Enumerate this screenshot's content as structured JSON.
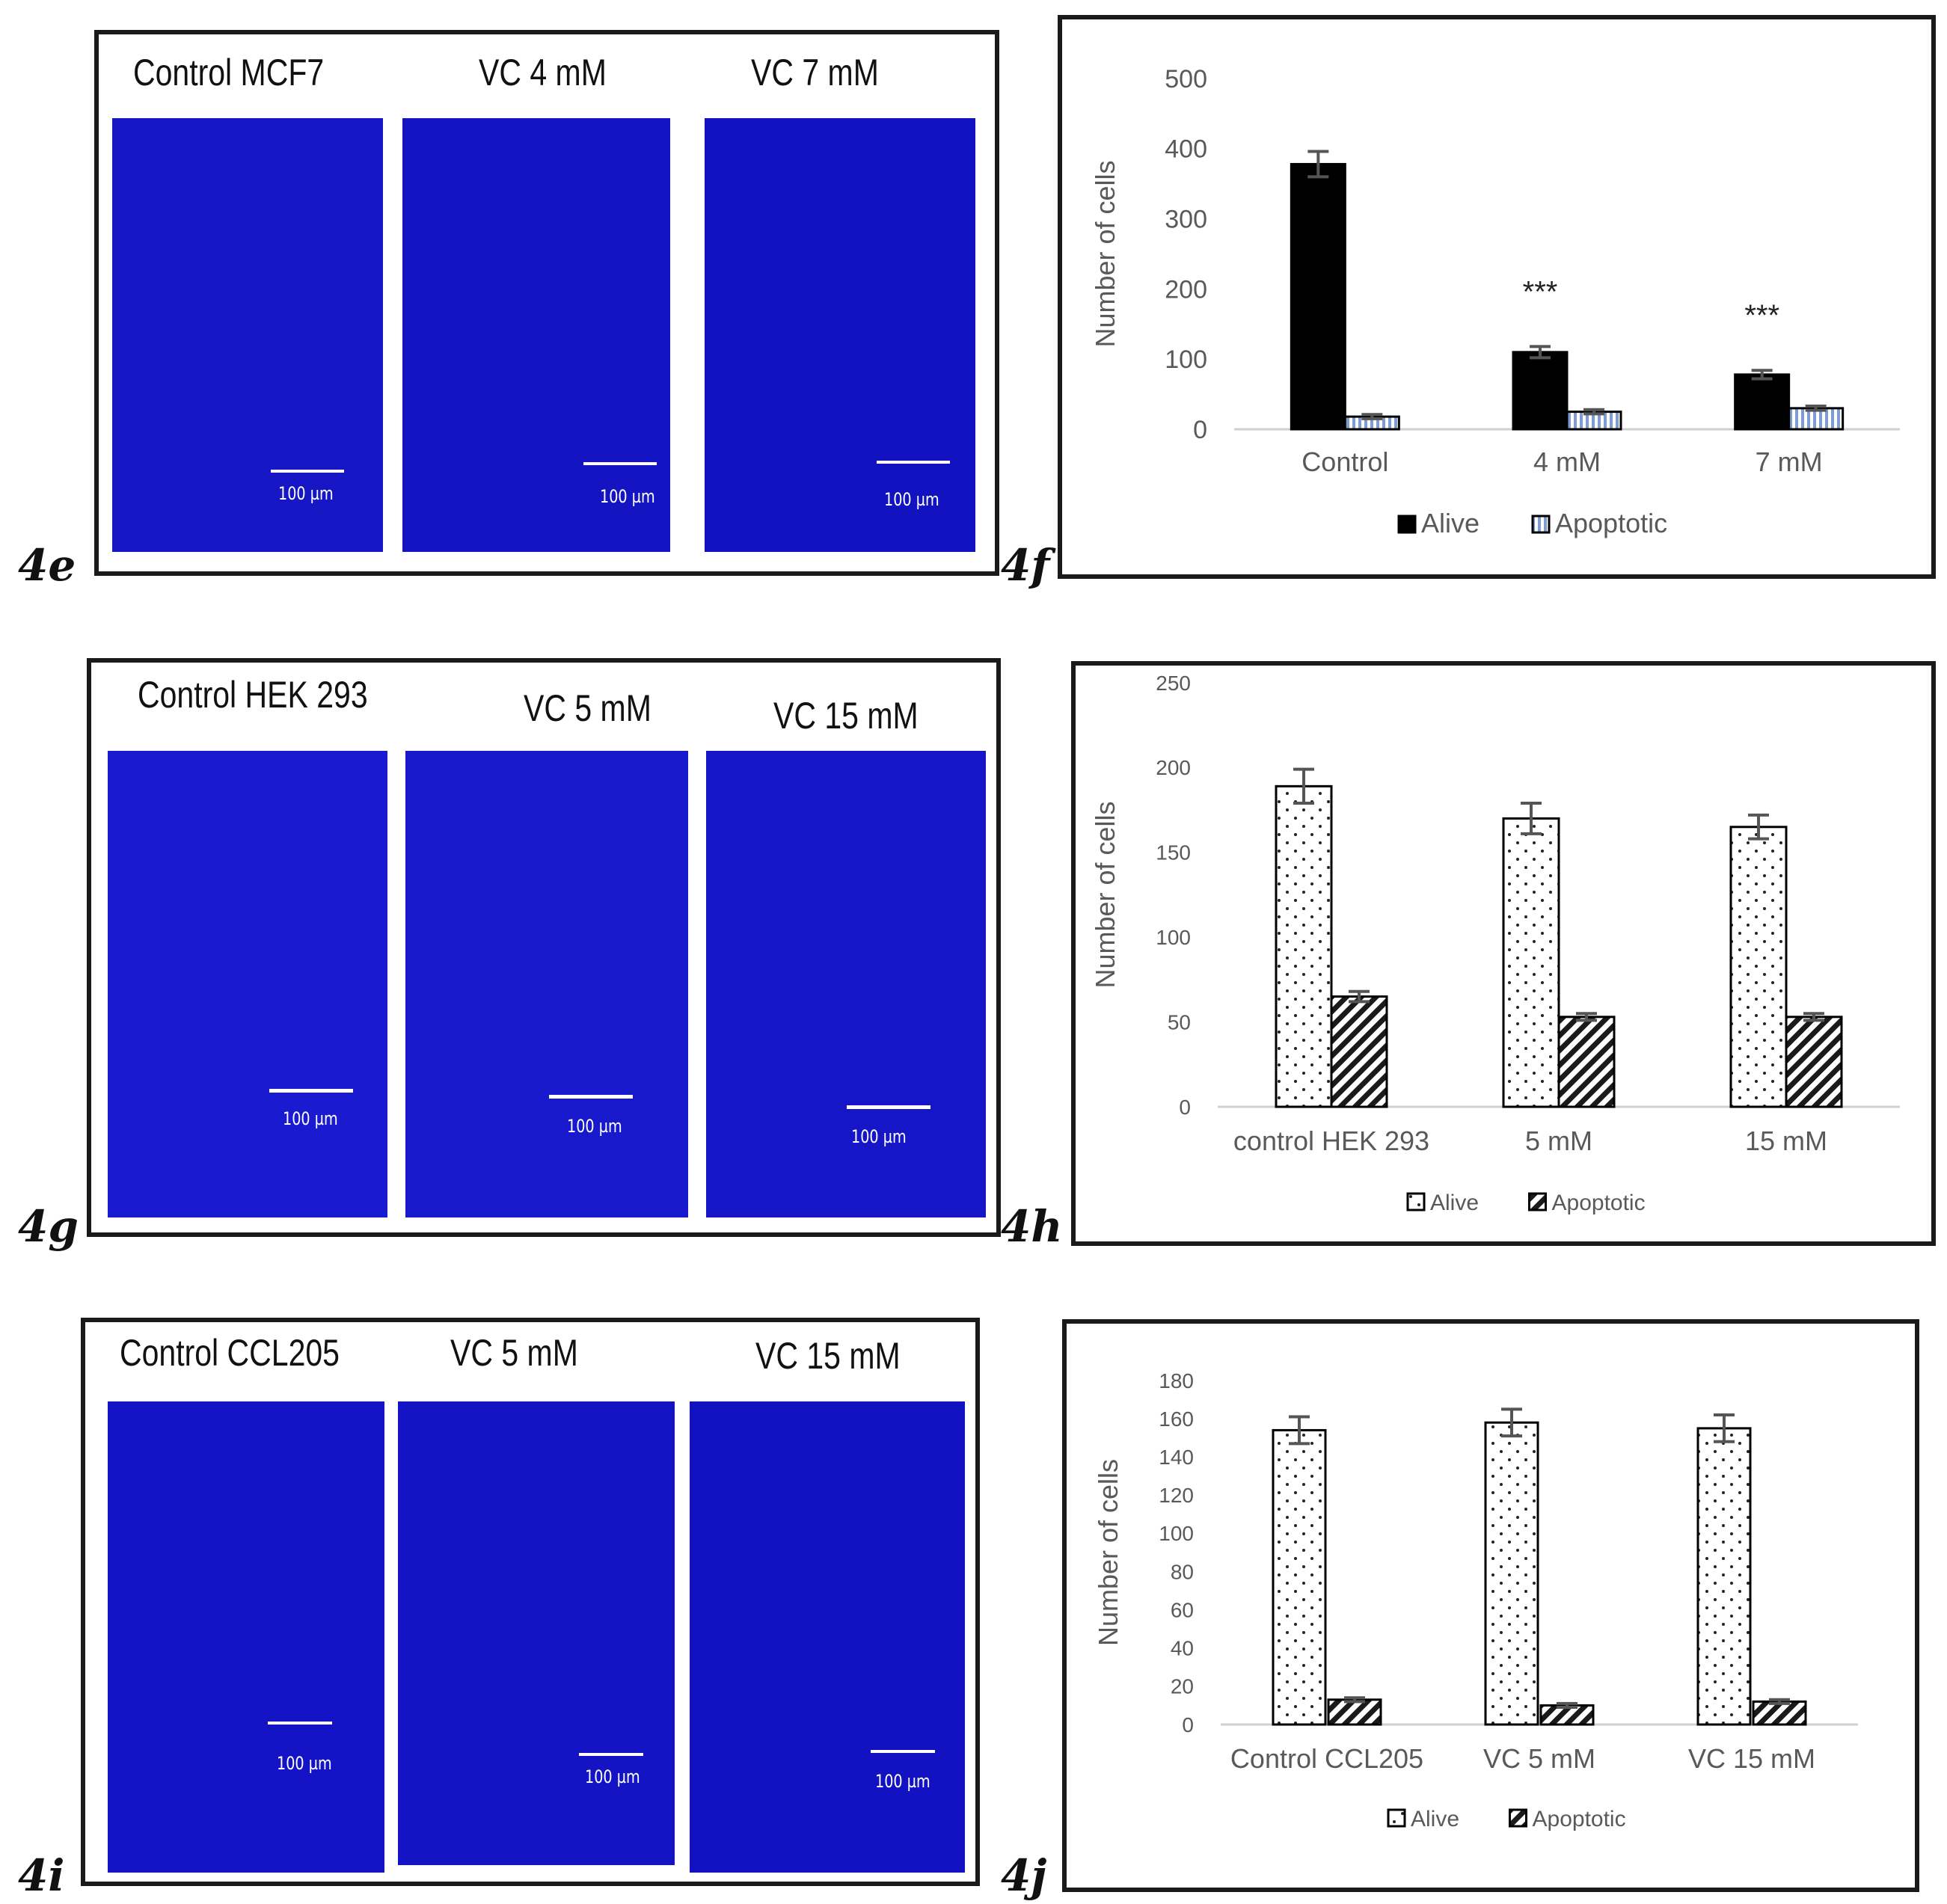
{
  "micrographs": [
    {
      "panel": "4e",
      "titles": [
        "Control MCF7",
        "VC 4 mM",
        "VC 7 mM"
      ],
      "scale_labels": [
        "100 µm",
        "100 µm",
        "100 µm"
      ]
    },
    {
      "panel": "4g",
      "titles": [
        "Control HEK 293",
        "VC 5 mM",
        "VC 15 mM"
      ],
      "scale_labels": [
        "100 µm",
        "100 µm",
        "100 µm"
      ]
    },
    {
      "panel": "4i",
      "titles": [
        "Control CCL205",
        "VC 5 mM",
        "VC 15 mM"
      ],
      "scale_labels": [
        "100 µm",
        "100 µm",
        "100 µm"
      ]
    }
  ],
  "colors": {
    "micrograph_blue": "#1414c8",
    "alive_black": "#000000",
    "apoptotic_blue_stripe": "#9ab0d8",
    "error_bar": "#555555",
    "axis": "#d0d0d0",
    "text": "#595959"
  },
  "chart_data": [
    {
      "panel": "4f",
      "type": "bar",
      "title": "",
      "xlabel": "",
      "ylabel": "Number of cells",
      "categories": [
        "Control",
        "4 mM",
        "7 mM"
      ],
      "ylim": [
        0,
        500
      ],
      "yticks": [
        "0",
        "100",
        "200",
        "300",
        "400",
        "500"
      ],
      "series": [
        {
          "name": "Alive",
          "values": [
            378,
            110,
            78
          ],
          "errors": [
            18,
            8,
            6
          ],
          "pattern": "solid-black"
        },
        {
          "name": "Apoptotic",
          "values": [
            18,
            25,
            30
          ],
          "errors": [
            3,
            3,
            3
          ],
          "pattern": "blue-vertical-stripes"
        }
      ],
      "annotations": [
        "",
        "***",
        "***"
      ],
      "legend": "bottom",
      "grid": false
    },
    {
      "panel": "4h",
      "type": "bar",
      "title": "",
      "xlabel": "",
      "ylabel": "Number of cells",
      "categories": [
        "control HEK 293",
        "5 mM",
        "15 mM"
      ],
      "ylim": [
        0,
        250
      ],
      "yticks": [
        "0",
        "50",
        "100",
        "150",
        "200",
        "250"
      ],
      "series": [
        {
          "name": "Alive",
          "values": [
            189,
            170,
            165
          ],
          "errors": [
            10,
            9,
            7
          ],
          "pattern": "dots"
        },
        {
          "name": "Apoptotic",
          "values": [
            65,
            53,
            53
          ],
          "errors": [
            3,
            2,
            2
          ],
          "pattern": "diagonal-stripes"
        }
      ],
      "annotations": [
        "",
        "",
        ""
      ],
      "legend": "bottom",
      "grid": false
    },
    {
      "panel": "4j",
      "type": "bar",
      "title": "",
      "xlabel": "",
      "ylabel": "Number of cells",
      "categories": [
        "Control CCL205",
        "VC 5 mM",
        "VC 15 mM"
      ],
      "ylim": [
        0,
        180
      ],
      "yticks": [
        "0",
        "20",
        "40",
        "60",
        "80",
        "100",
        "120",
        "140",
        "160",
        "180"
      ],
      "series": [
        {
          "name": "Alive",
          "values": [
            154,
            158,
            155
          ],
          "errors": [
            7,
            7,
            7
          ],
          "pattern": "dots"
        },
        {
          "name": "Apoptotic",
          "values": [
            13,
            10,
            12
          ],
          "errors": [
            1,
            1,
            1
          ],
          "pattern": "diagonal-stripes"
        }
      ],
      "annotations": [
        "",
        "",
        ""
      ],
      "legend": "bottom",
      "grid": false
    }
  ]
}
